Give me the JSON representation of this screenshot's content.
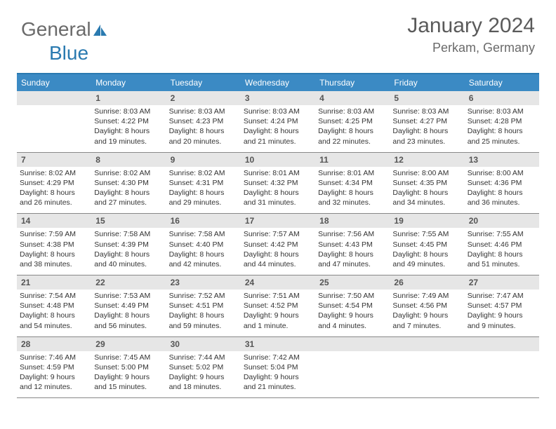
{
  "logo": {
    "part1": "General",
    "part2": "Blue"
  },
  "header": {
    "month": "January 2024",
    "location": "Perkam, Germany"
  },
  "colors": {
    "header_blue": "#3b8ac4",
    "border_blue": "#2a7ab0",
    "daynum_bg": "#e6e6e6",
    "text_gray": "#555"
  },
  "dayNames": [
    "Sunday",
    "Monday",
    "Tuesday",
    "Wednesday",
    "Thursday",
    "Friday",
    "Saturday"
  ],
  "startOffset": 1,
  "days": [
    {
      "n": 1,
      "sr": "8:03 AM",
      "ss": "4:22 PM",
      "dl": "8 hours and 19 minutes."
    },
    {
      "n": 2,
      "sr": "8:03 AM",
      "ss": "4:23 PM",
      "dl": "8 hours and 20 minutes."
    },
    {
      "n": 3,
      "sr": "8:03 AM",
      "ss": "4:24 PM",
      "dl": "8 hours and 21 minutes."
    },
    {
      "n": 4,
      "sr": "8:03 AM",
      "ss": "4:25 PM",
      "dl": "8 hours and 22 minutes."
    },
    {
      "n": 5,
      "sr": "8:03 AM",
      "ss": "4:27 PM",
      "dl": "8 hours and 23 minutes."
    },
    {
      "n": 6,
      "sr": "8:03 AM",
      "ss": "4:28 PM",
      "dl": "8 hours and 25 minutes."
    },
    {
      "n": 7,
      "sr": "8:02 AM",
      "ss": "4:29 PM",
      "dl": "8 hours and 26 minutes."
    },
    {
      "n": 8,
      "sr": "8:02 AM",
      "ss": "4:30 PM",
      "dl": "8 hours and 27 minutes."
    },
    {
      "n": 9,
      "sr": "8:02 AM",
      "ss": "4:31 PM",
      "dl": "8 hours and 29 minutes."
    },
    {
      "n": 10,
      "sr": "8:01 AM",
      "ss": "4:32 PM",
      "dl": "8 hours and 31 minutes."
    },
    {
      "n": 11,
      "sr": "8:01 AM",
      "ss": "4:34 PM",
      "dl": "8 hours and 32 minutes."
    },
    {
      "n": 12,
      "sr": "8:00 AM",
      "ss": "4:35 PM",
      "dl": "8 hours and 34 minutes."
    },
    {
      "n": 13,
      "sr": "8:00 AM",
      "ss": "4:36 PM",
      "dl": "8 hours and 36 minutes."
    },
    {
      "n": 14,
      "sr": "7:59 AM",
      "ss": "4:38 PM",
      "dl": "8 hours and 38 minutes."
    },
    {
      "n": 15,
      "sr": "7:58 AM",
      "ss": "4:39 PM",
      "dl": "8 hours and 40 minutes."
    },
    {
      "n": 16,
      "sr": "7:58 AM",
      "ss": "4:40 PM",
      "dl": "8 hours and 42 minutes."
    },
    {
      "n": 17,
      "sr": "7:57 AM",
      "ss": "4:42 PM",
      "dl": "8 hours and 44 minutes."
    },
    {
      "n": 18,
      "sr": "7:56 AM",
      "ss": "4:43 PM",
      "dl": "8 hours and 47 minutes."
    },
    {
      "n": 19,
      "sr": "7:55 AM",
      "ss": "4:45 PM",
      "dl": "8 hours and 49 minutes."
    },
    {
      "n": 20,
      "sr": "7:55 AM",
      "ss": "4:46 PM",
      "dl": "8 hours and 51 minutes."
    },
    {
      "n": 21,
      "sr": "7:54 AM",
      "ss": "4:48 PM",
      "dl": "8 hours and 54 minutes."
    },
    {
      "n": 22,
      "sr": "7:53 AM",
      "ss": "4:49 PM",
      "dl": "8 hours and 56 minutes."
    },
    {
      "n": 23,
      "sr": "7:52 AM",
      "ss": "4:51 PM",
      "dl": "8 hours and 59 minutes."
    },
    {
      "n": 24,
      "sr": "7:51 AM",
      "ss": "4:52 PM",
      "dl": "9 hours and 1 minute."
    },
    {
      "n": 25,
      "sr": "7:50 AM",
      "ss": "4:54 PM",
      "dl": "9 hours and 4 minutes."
    },
    {
      "n": 26,
      "sr": "7:49 AM",
      "ss": "4:56 PM",
      "dl": "9 hours and 7 minutes."
    },
    {
      "n": 27,
      "sr": "7:47 AM",
      "ss": "4:57 PM",
      "dl": "9 hours and 9 minutes."
    },
    {
      "n": 28,
      "sr": "7:46 AM",
      "ss": "4:59 PM",
      "dl": "9 hours and 12 minutes."
    },
    {
      "n": 29,
      "sr": "7:45 AM",
      "ss": "5:00 PM",
      "dl": "9 hours and 15 minutes."
    },
    {
      "n": 30,
      "sr": "7:44 AM",
      "ss": "5:02 PM",
      "dl": "9 hours and 18 minutes."
    },
    {
      "n": 31,
      "sr": "7:42 AM",
      "ss": "5:04 PM",
      "dl": "9 hours and 21 minutes."
    }
  ],
  "labels": {
    "sunrise": "Sunrise:",
    "sunset": "Sunset:",
    "daylight": "Daylight:"
  }
}
